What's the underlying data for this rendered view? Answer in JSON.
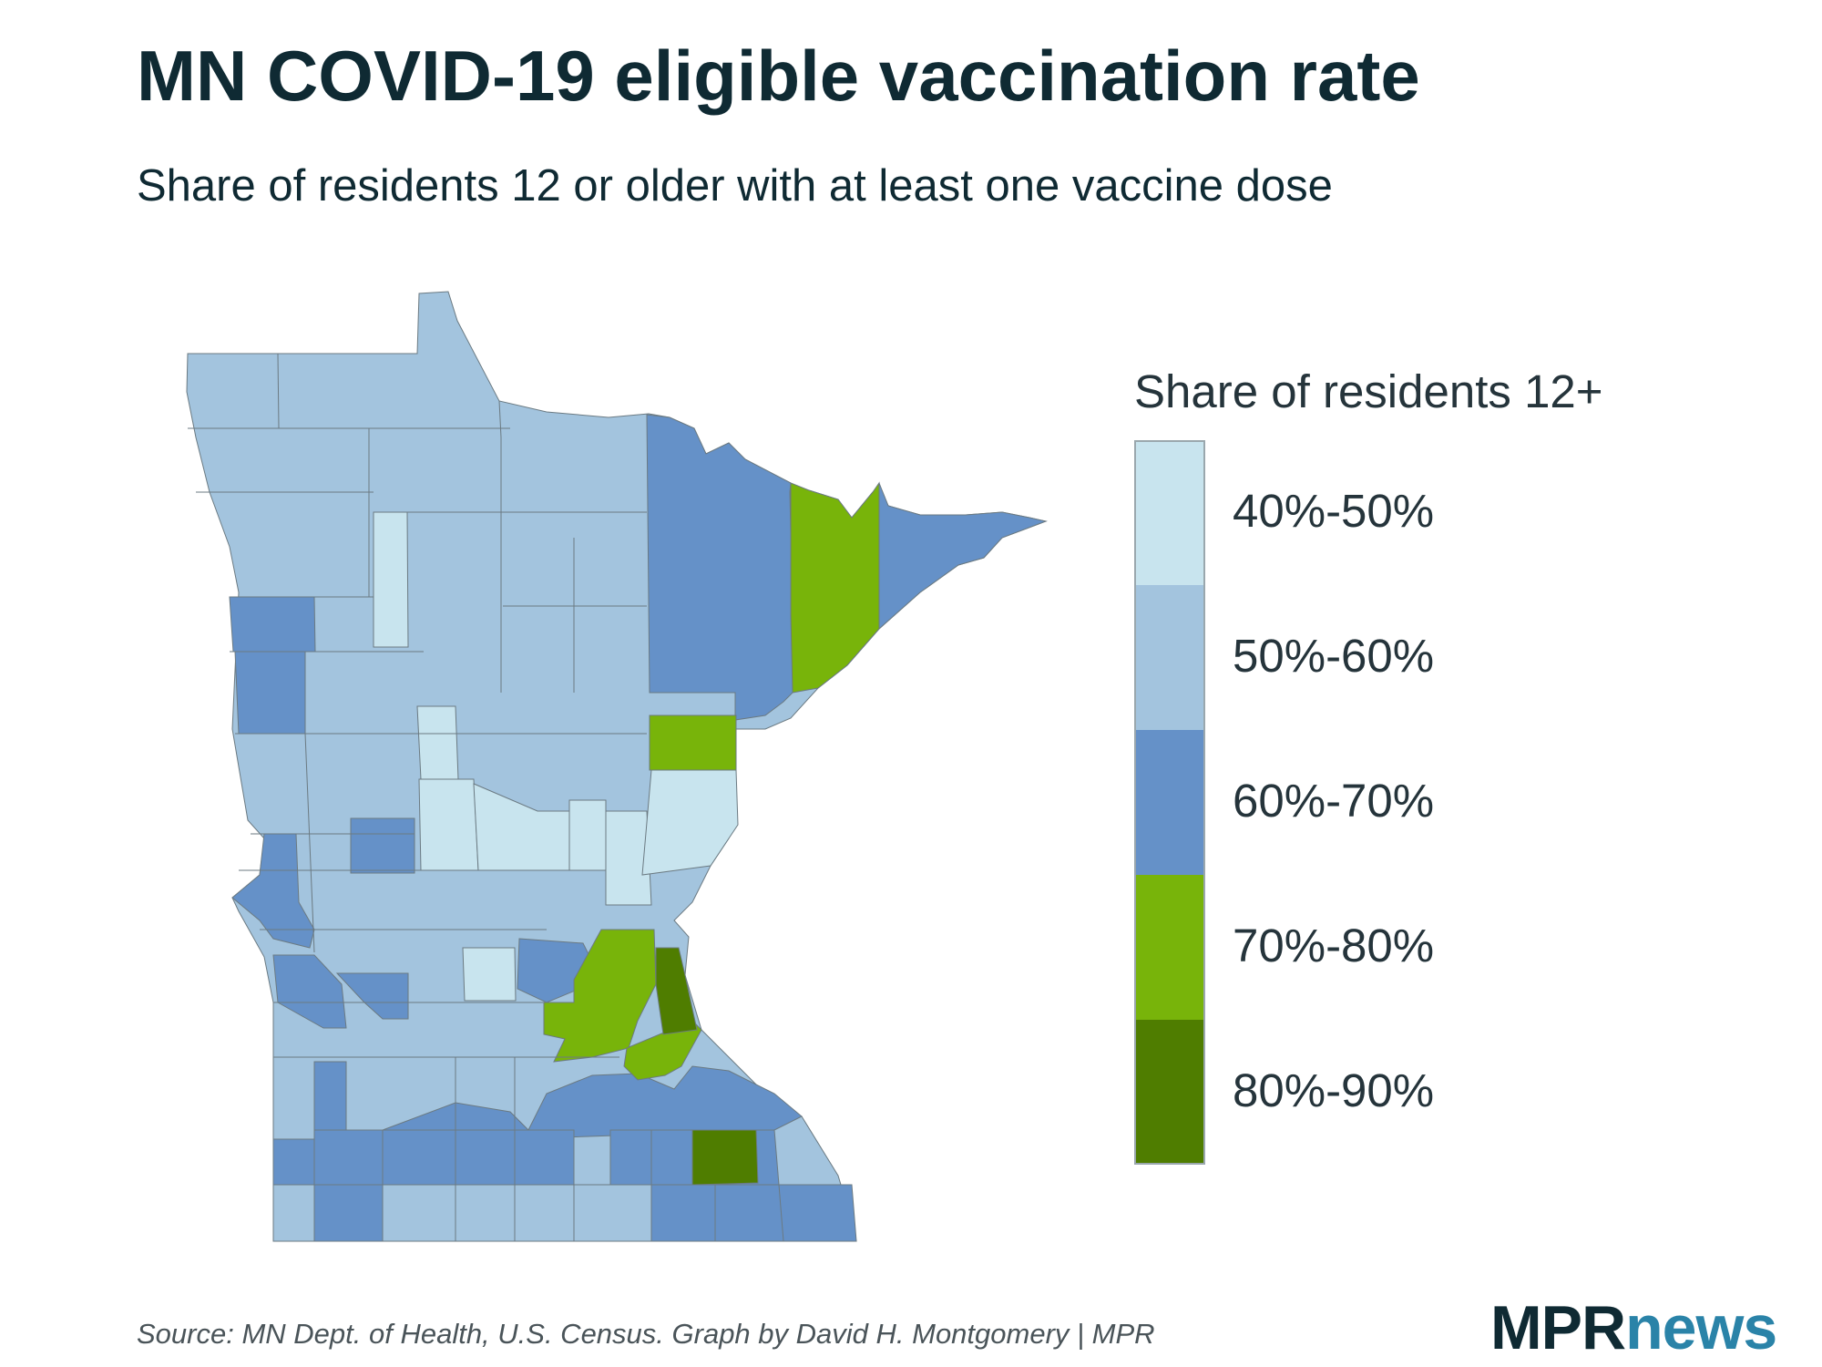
{
  "title": "MN COVID-19 eligible vaccination rate",
  "subtitle": "Share of residents 12 or older with at least one vaccine dose",
  "legend": {
    "title": "Share of residents 12+",
    "items": [
      {
        "label": "40%-50%",
        "color": "#c8e4ee"
      },
      {
        "label": "50%-60%",
        "color": "#a3c4de"
      },
      {
        "label": "60%-70%",
        "color": "#6591c8"
      },
      {
        "label": "70%-80%",
        "color": "#78b40a"
      },
      {
        "label": "80%-90%",
        "color": "#4f7d00"
      }
    ]
  },
  "source": "Source: MN Dept. of Health, U.S. Census. Graph by David H. Montgomery | MPR",
  "logo": {
    "part1": "MPR",
    "part2": "news"
  }
}
